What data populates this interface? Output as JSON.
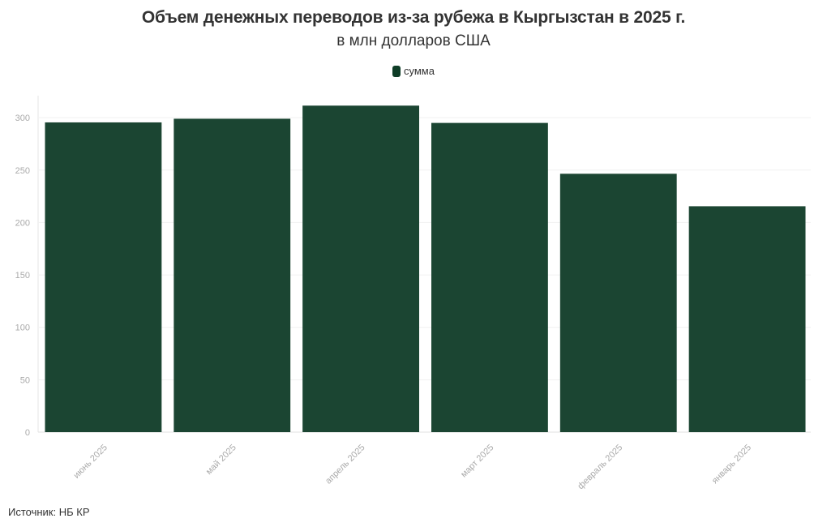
{
  "chart_data": {
    "type": "bar",
    "title": "Объем денежных переводов из-за рубежа в Кыргызстан в 2025 г.",
    "subtitle": "в млн долларов США",
    "categories": [
      "июнь 2025",
      "май 2025",
      "апрель 2025",
      "март 2025",
      "февраль 2025",
      "январь 2025"
    ],
    "series": [
      {
        "name": "сумма",
        "values": [
          295.5,
          299,
          311.5,
          295,
          246.5,
          215.5
        ],
        "color": "#1b4532"
      }
    ],
    "ylim": [
      0,
      321
    ],
    "yticks": [
      0,
      50,
      100,
      150,
      200,
      250,
      300
    ],
    "grid": true,
    "legend_position": "top-center"
  },
  "legend": {
    "label": "сумма",
    "color": "#0f3d27"
  },
  "source": "Источник: НБ КР"
}
